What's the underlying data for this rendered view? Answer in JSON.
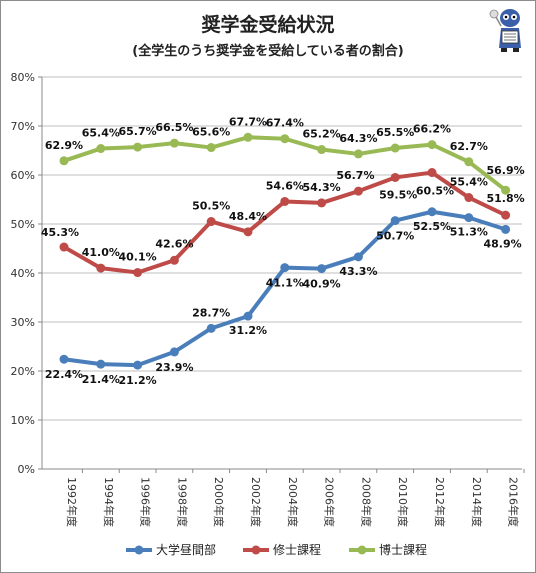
{
  "header": {
    "title": "奨学金受給状況",
    "subtitle": "(全学生のうち奨学金を受給している者の割合)"
  },
  "chart_data": {
    "type": "line",
    "categories": [
      "1992年度",
      "1994年度",
      "1996年度",
      "1998年度",
      "2000年度",
      "2002年度",
      "2004年度",
      "2006年度",
      "2008年度",
      "2010年度",
      "2012年度",
      "2014年度",
      "2016年度"
    ],
    "y_ticks": [
      "0%",
      "10%",
      "20%",
      "30%",
      "40%",
      "50%",
      "60%",
      "70%",
      "80%"
    ],
    "ylim": [
      0,
      80
    ],
    "grid": true,
    "legend_position": "bottom",
    "series": [
      {
        "name": "大学昼間部",
        "color": "#4a7ebb",
        "values": [
          22.4,
          21.4,
          21.2,
          23.9,
          28.7,
          31.2,
          41.1,
          40.9,
          43.3,
          50.7,
          52.5,
          51.3,
          48.9
        ],
        "labels": [
          "22.4%",
          "21.4%",
          "21.2%",
          "23.9%",
          "28.7%",
          "31.2%",
          "41.1%",
          "40.9%",
          "43.3%",
          "50.7%",
          "52.5%",
          "51.3%",
          "48.9%"
        ]
      },
      {
        "name": "修士課程",
        "color": "#be4b48",
        "values": [
          45.3,
          41.0,
          40.1,
          42.6,
          50.5,
          48.4,
          54.6,
          54.3,
          56.7,
          59.5,
          60.5,
          55.4,
          51.8
        ],
        "labels": [
          "45.3%",
          "41.0%",
          "40.1%",
          "42.6%",
          "50.5%",
          "48.4%",
          "54.6%",
          "54.3%",
          "56.7%",
          "59.5%",
          "60.5%",
          "55.4%",
          "51.8%"
        ]
      },
      {
        "name": "博士課程",
        "color": "#98b954",
        "values": [
          62.9,
          65.4,
          65.7,
          66.5,
          65.6,
          67.7,
          67.4,
          65.2,
          64.3,
          65.5,
          66.2,
          62.7,
          56.9
        ],
        "labels": [
          "62.9%",
          "65.4%",
          "65.7%",
          "66.5%",
          "65.6%",
          "67.7%",
          "67.4%",
          "65.2%",
          "64.3%",
          "65.5%",
          "66.2%",
          "62.7%",
          "56.9%"
        ]
      }
    ]
  }
}
